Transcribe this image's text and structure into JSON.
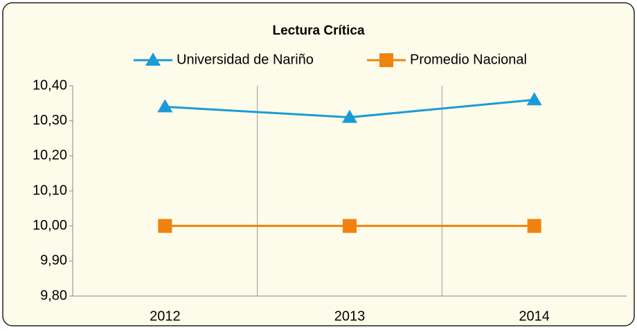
{
  "chart_data": {
    "type": "line",
    "title": "Lectura Crítica",
    "categories": [
      "2012",
      "2013",
      "2014"
    ],
    "series": [
      {
        "name": "Universidad de Nariño",
        "color": "#1a9bd7",
        "marker": "triangle",
        "values": [
          10.34,
          10.31,
          10.36
        ]
      },
      {
        "name": "Promedio Nacional",
        "color": "#f0820f",
        "marker": "square",
        "values": [
          10.0,
          10.0,
          10.0
        ]
      }
    ],
    "ylim": [
      9.8,
      10.4
    ],
    "yticks": [
      {
        "value": 9.8,
        "label": "9,80"
      },
      {
        "value": 9.9,
        "label": "9,90"
      },
      {
        "value": 10.0,
        "label": "10,00"
      },
      {
        "value": 10.1,
        "label": "10,10"
      },
      {
        "value": 10.2,
        "label": "10,20"
      },
      {
        "value": 10.3,
        "label": "10,30"
      },
      {
        "value": 10.4,
        "label": "10,40"
      }
    ],
    "legend": "top",
    "grid": "vertical"
  }
}
